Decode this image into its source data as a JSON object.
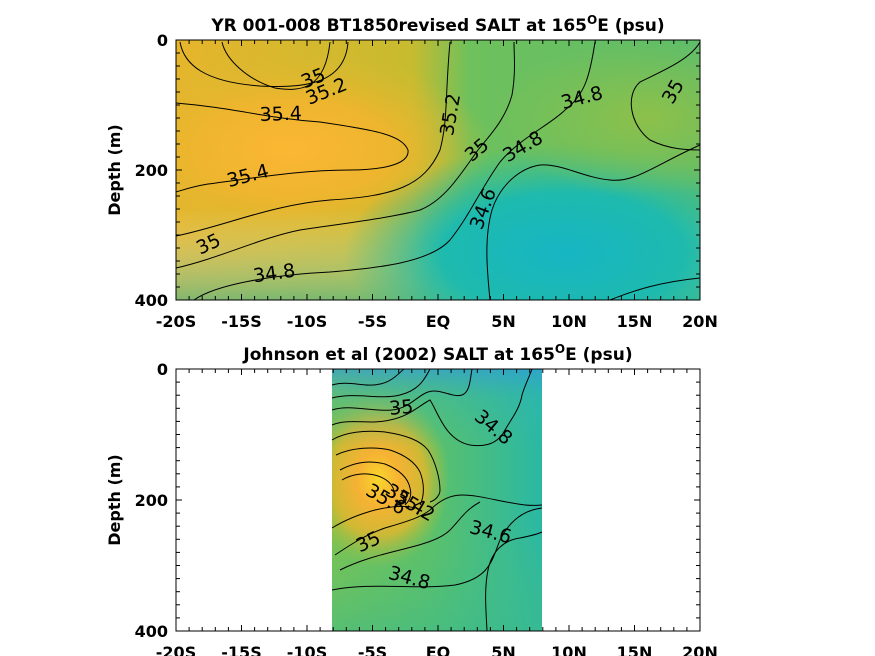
{
  "chart_data": [
    {
      "type": "heatmap",
      "title": "YR 001-008 BT1850revised SALT at 165",
      "title_sup": "O",
      "title_suffix": "E (psu)",
      "xlabel": "",
      "ylabel": "Depth (m)",
      "xlim": [
        -20,
        20
      ],
      "ylim": [
        0,
        400
      ],
      "x_ticks": [
        -20,
        -15,
        -10,
        -5,
        0,
        5,
        10,
        15,
        20
      ],
      "x_tick_labels": [
        "-20S",
        "-15S",
        "-10S",
        "-5S",
        "EQ",
        "5N",
        "10N",
        "15N",
        "20N"
      ],
      "y_ticks": [
        0,
        200,
        400
      ],
      "y_tick_labels": [
        "0",
        "200",
        "400"
      ],
      "data_extent_x": [
        -20,
        20
      ],
      "colormap": "parula",
      "contour_labels": [
        {
          "text": "35",
          "lat": -9.5,
          "depth": 60
        },
        {
          "text": "35.2",
          "lat": -8.5,
          "depth": 80
        },
        {
          "text": "35.4",
          "lat": -12,
          "depth": 115
        },
        {
          "text": "35.2",
          "lat": 1,
          "depth": 115
        },
        {
          "text": "34.8",
          "lat": 11,
          "depth": 90
        },
        {
          "text": "35",
          "lat": 18,
          "depth": 80
        },
        {
          "text": "35",
          "lat": 3,
          "depth": 170
        },
        {
          "text": "34.8",
          "lat": 6.5,
          "depth": 165
        },
        {
          "text": "35.4",
          "lat": -14.5,
          "depth": 210
        },
        {
          "text": "34.6",
          "lat": 3.5,
          "depth": 260
        },
        {
          "text": "35",
          "lat": -17.5,
          "depth": 315
        },
        {
          "text": "34.8",
          "lat": -12.5,
          "depth": 360
        }
      ]
    },
    {
      "type": "heatmap",
      "title": "Johnson et al (2002) SALT at 165",
      "title_sup": "O",
      "title_suffix": "E (psu)",
      "xlabel": "",
      "ylabel": "Depth (m)",
      "xlim": [
        -20,
        20
      ],
      "ylim": [
        0,
        400
      ],
      "x_ticks": [
        -20,
        -15,
        -10,
        -5,
        0,
        5,
        10,
        15,
        20
      ],
      "x_tick_labels": [
        "-20S",
        "-15S",
        "-10S",
        "-5S",
        "EQ",
        "5N",
        "10N",
        "15N",
        "20N"
      ],
      "y_ticks": [
        0,
        200,
        400
      ],
      "y_tick_labels": [
        "0",
        "200",
        "400"
      ],
      "data_extent_x": [
        -8,
        8
      ],
      "colormap": "parula",
      "contour_labels": [
        {
          "text": "35",
          "lat": -2.8,
          "depth": 60
        },
        {
          "text": "34.8",
          "lat": 4.2,
          "depth": 90
        },
        {
          "text": "35.6",
          "lat": -4,
          "depth": 200
        },
        {
          "text": "35.4",
          "lat": -2.5,
          "depth": 200
        },
        {
          "text": "35.2",
          "lat": -1.8,
          "depth": 210
        },
        {
          "text": "35",
          "lat": -5.3,
          "depth": 265
        },
        {
          "text": "34.6",
          "lat": 4,
          "depth": 250
        },
        {
          "text": "34.8",
          "lat": -2.2,
          "depth": 320
        }
      ]
    }
  ]
}
